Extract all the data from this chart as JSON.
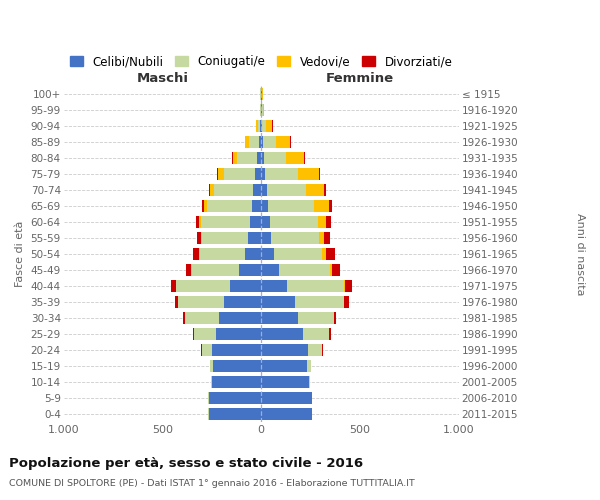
{
  "age_groups": [
    "0-4",
    "5-9",
    "10-14",
    "15-19",
    "20-24",
    "25-29",
    "30-34",
    "35-39",
    "40-44",
    "45-49",
    "50-54",
    "55-59",
    "60-64",
    "65-69",
    "70-74",
    "75-79",
    "80-84",
    "85-89",
    "90-94",
    "95-99",
    "100+"
  ],
  "birth_years": [
    "2011-2015",
    "2006-2010",
    "2001-2005",
    "1996-2000",
    "1991-1995",
    "1986-1990",
    "1981-1985",
    "1976-1980",
    "1971-1975",
    "1966-1970",
    "1961-1965",
    "1956-1960",
    "1951-1955",
    "1946-1950",
    "1941-1945",
    "1936-1940",
    "1931-1935",
    "1926-1930",
    "1921-1925",
    "1916-1920",
    "≤ 1915"
  ],
  "maschi_celibi": [
    265,
    265,
    250,
    245,
    250,
    230,
    215,
    190,
    160,
    110,
    80,
    65,
    55,
    45,
    40,
    30,
    20,
    10,
    5,
    2,
    2
  ],
  "maschi_coniugati": [
    2,
    3,
    5,
    15,
    50,
    110,
    170,
    230,
    270,
    240,
    230,
    235,
    250,
    230,
    200,
    160,
    100,
    50,
    12,
    3,
    2
  ],
  "maschi_vedovi": [
    0,
    0,
    0,
    0,
    1,
    1,
    2,
    2,
    3,
    3,
    5,
    5,
    10,
    15,
    18,
    30,
    25,
    20,
    8,
    2,
    1
  ],
  "maschi_divorziati": [
    0,
    0,
    0,
    1,
    2,
    5,
    8,
    15,
    25,
    25,
    30,
    22,
    15,
    10,
    8,
    5,
    3,
    2,
    0,
    0,
    0
  ],
  "femmine_nubili": [
    255,
    255,
    240,
    230,
    235,
    210,
    185,
    170,
    130,
    90,
    65,
    52,
    45,
    35,
    30,
    20,
    15,
    10,
    5,
    2,
    2
  ],
  "femmine_coniugate": [
    2,
    3,
    8,
    22,
    72,
    132,
    182,
    248,
    288,
    258,
    242,
    238,
    242,
    232,
    198,
    168,
    112,
    65,
    20,
    5,
    2
  ],
  "femmine_vedove": [
    0,
    0,
    0,
    0,
    1,
    1,
    2,
    3,
    5,
    12,
    22,
    28,
    42,
    78,
    92,
    102,
    92,
    72,
    32,
    8,
    3
  ],
  "femmine_divorziate": [
    0,
    0,
    0,
    1,
    3,
    8,
    12,
    22,
    38,
    38,
    42,
    32,
    22,
    15,
    10,
    8,
    5,
    2,
    1,
    0,
    0
  ],
  "colors": {
    "celibi": "#4472c4",
    "coniugati": "#c5d9a0",
    "vedovi": "#ffc000",
    "divorziati": "#cc0000"
  },
  "xlim": 1000,
  "title": "Popolazione per età, sesso e stato civile - 2016",
  "subtitle": "COMUNE DI SPOLTORE (PE) - Dati ISTAT 1° gennaio 2016 - Elaborazione TUTTITALIA.IT",
  "ylabel_left": "Fasce di età",
  "ylabel_right": "Anni di nascita",
  "xlabel_maschi": "Maschi",
  "xlabel_femmine": "Femmine",
  "legend_labels": [
    "Celibi/Nubili",
    "Coniugati/e",
    "Vedovi/e",
    "Divorziati/e"
  ],
  "xtick_vals": [
    -1000,
    -500,
    0,
    500,
    1000
  ],
  "xtick_labels": [
    "1.000",
    "500",
    "0",
    "500",
    "1.000"
  ],
  "background_color": "#ffffff",
  "grid_color": "#cccccc"
}
